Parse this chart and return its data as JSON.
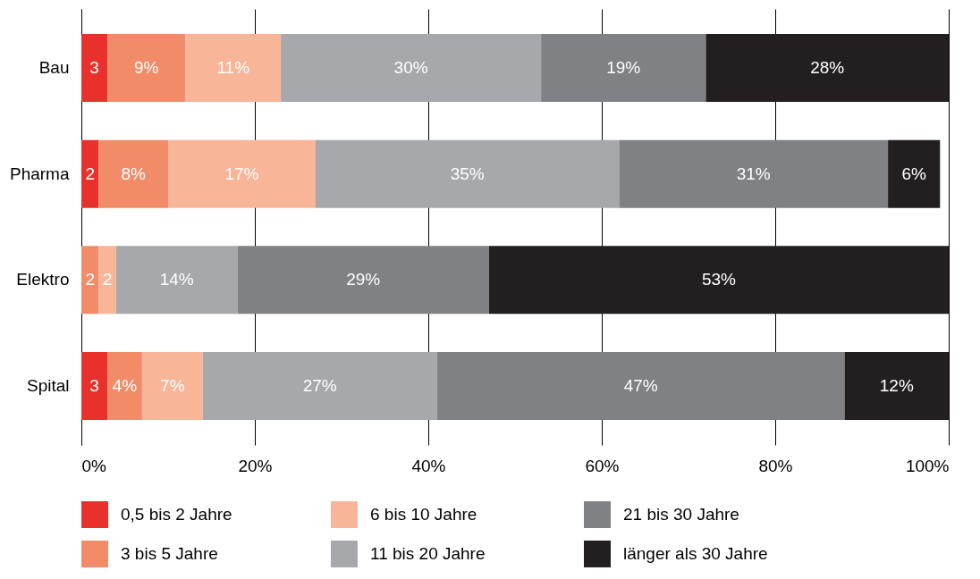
{
  "chart_data": {
    "type": "bar",
    "orientation": "horizontal",
    "stacked": true,
    "categories": [
      "Bau",
      "Pharma",
      "Elektro",
      "Spital"
    ],
    "series": [
      {
        "name": "0,5 bis 2 Jahre",
        "color": "#e8312a",
        "values": [
          3,
          2,
          null,
          3
        ],
        "value_labels": [
          "3",
          "2",
          null,
          "3"
        ]
      },
      {
        "name": "3 bis 5 Jahre",
        "color": "#f28c68",
        "values": [
          9,
          8,
          2,
          4
        ],
        "value_labels": [
          "9%",
          "8%",
          "2",
          "4%"
        ]
      },
      {
        "name": "6 bis 10 Jahre",
        "color": "#f9b597",
        "values": [
          11,
          17,
          2,
          7
        ],
        "value_labels": [
          "11%",
          "17%",
          "2",
          "7%"
        ]
      },
      {
        "name": "11 bis 20 Jahre",
        "color": "#a7a8ab",
        "values": [
          30,
          35,
          14,
          27
        ],
        "value_labels": [
          "30%",
          "35%",
          "14%",
          "27%"
        ]
      },
      {
        "name": "21 bis 30 Jahre",
        "color": "#808184",
        "values": [
          19,
          31,
          29,
          47
        ],
        "value_labels": [
          "19%",
          "31%",
          "29%",
          "47%"
        ]
      },
      {
        "name": "länger als 30 Jahre",
        "color": "#231f20",
        "values": [
          28,
          6,
          53,
          12
        ],
        "value_labels": [
          "28%",
          "6%",
          "53%",
          "12%"
        ]
      }
    ],
    "xlim": [
      0,
      100
    ],
    "xticks": [
      {
        "value": 0,
        "label": "0%"
      },
      {
        "value": 20,
        "label": "20%"
      },
      {
        "value": 40,
        "label": "40%"
      },
      {
        "value": 60,
        "label": "60%"
      },
      {
        "value": 80,
        "label": "80%"
      },
      {
        "value": 100,
        "label": "100%"
      }
    ],
    "grid": "x",
    "legend": "bottom"
  }
}
